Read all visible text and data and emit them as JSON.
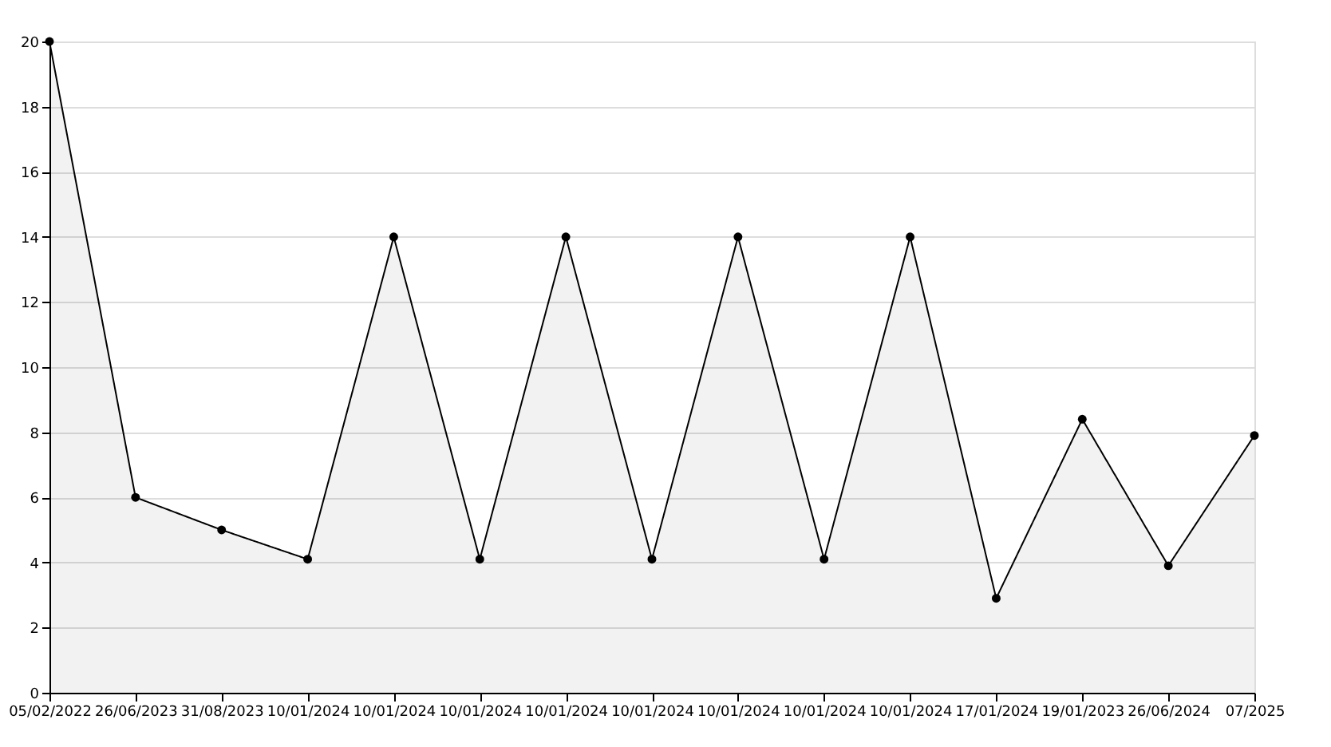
{
  "chart_data": {
    "type": "area",
    "categories": [
      "05/02/2022",
      "26/06/2023",
      "31/08/2023",
      "10/01/2024",
      "10/01/2024",
      "10/01/2024",
      "10/01/2024",
      "10/01/2024",
      "10/01/2024",
      "10/01/2024",
      "10/01/2024",
      "17/01/2024",
      "19/01/2023",
      "26/06/2024",
      "07/2025"
    ],
    "series": [
      {
        "color": "#000000",
        "values": [
          20,
          6,
          5,
          4.1,
          14,
          4.1,
          14,
          4.1,
          14,
          4.1,
          14,
          2.9,
          8.4,
          3.9,
          7.9
        ]
      }
    ],
    "ylim": [
      0,
      20
    ],
    "yticks": [
      0,
      2,
      4,
      6,
      8,
      10,
      12,
      14,
      16,
      18,
      20
    ],
    "grid": "y",
    "marker": "circle",
    "line_style": "solid"
  }
}
